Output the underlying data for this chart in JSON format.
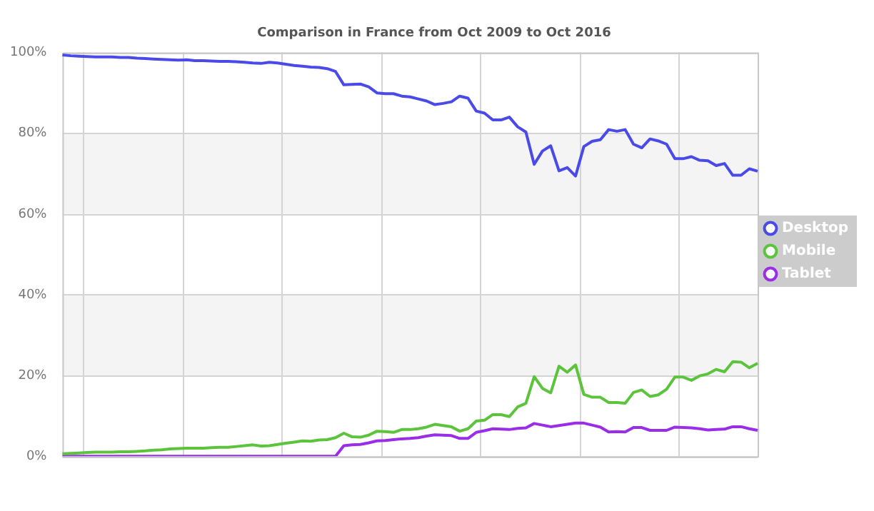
{
  "chart_data": {
    "type": "line",
    "subtitle": "Comparison in France from Oct 2009 to Oct 2016",
    "categories": [
      null,
      null,
      null,
      null,
      null,
      null,
      null,
      null,
      null,
      null,
      null,
      null,
      null,
      null,
      null,
      null,
      null,
      null,
      null,
      null,
      null,
      null,
      null,
      null,
      null,
      null,
      null,
      null,
      null,
      null,
      null,
      null,
      null,
      null,
      null,
      null,
      null,
      null,
      null,
      null,
      null,
      null,
      null,
      null,
      null,
      null,
      null,
      null,
      null,
      null,
      null,
      null,
      null,
      null,
      null,
      null,
      null,
      null,
      null,
      null,
      null,
      null,
      null,
      null,
      null,
      null,
      null,
      null,
      null,
      null,
      null,
      null,
      null,
      null,
      null,
      null,
      null,
      null,
      null,
      null,
      null,
      null,
      null,
      null,
      null
    ],
    "series": [
      {
        "name": "Desktop",
        "color": "#4a4ae8",
        "values": [
          99.4,
          99.2,
          99.1,
          99.0,
          98.9,
          98.9,
          98.9,
          98.8,
          98.8,
          98.6,
          98.5,
          98.4,
          98.3,
          98.2,
          98.1,
          98.2,
          98.0,
          98.0,
          97.9,
          97.8,
          97.8,
          97.7,
          97.6,
          97.4,
          97.3,
          97.6,
          97.4,
          97.1,
          96.8,
          96.6,
          96.4,
          96.3,
          96.0,
          95.3,
          92.0,
          92.1,
          92.2,
          91.5,
          90.0,
          89.8,
          89.8,
          89.2,
          89.0,
          88.5,
          88.0,
          87.1,
          87.4,
          87.8,
          89.2,
          88.7,
          85.5,
          85.0,
          83.3,
          83.3,
          84.0,
          81.6,
          80.3,
          72.3,
          75.6,
          76.9,
          70.7,
          71.5,
          69.4,
          76.7,
          78.0,
          78.4,
          80.9,
          80.5,
          80.9,
          77.3,
          76.4,
          78.6,
          78.1,
          77.3,
          73.7,
          73.7,
          74.2,
          73.3,
          73.2,
          72.0,
          72.5,
          69.6,
          69.6,
          71.2,
          70.6
        ]
      },
      {
        "name": "Mobile",
        "color": "#5cc43c",
        "values": [
          0.6,
          0.7,
          0.8,
          0.9,
          1.0,
          1.0,
          1.0,
          1.1,
          1.1,
          1.2,
          1.3,
          1.5,
          1.6,
          1.8,
          1.9,
          2.0,
          2.0,
          2.0,
          2.1,
          2.2,
          2.2,
          2.4,
          2.6,
          2.8,
          2.5,
          2.6,
          2.9,
          3.2,
          3.5,
          3.8,
          3.7,
          4.0,
          4.1,
          4.6,
          5.7,
          4.8,
          4.7,
          5.2,
          6.2,
          6.1,
          5.9,
          6.6,
          6.6,
          6.8,
          7.2,
          7.9,
          7.6,
          7.3,
          6.2,
          6.8,
          8.7,
          8.9,
          10.3,
          10.3,
          9.8,
          12.2,
          13.1,
          19.7,
          16.8,
          15.7,
          22.3,
          20.8,
          22.6,
          15.3,
          14.6,
          14.6,
          13.3,
          13.3,
          13.1,
          15.8,
          16.4,
          14.8,
          15.2,
          16.6,
          19.6,
          19.6,
          18.8,
          19.9,
          20.4,
          21.5,
          20.9,
          23.4,
          23.3,
          21.9,
          23.0
        ]
      },
      {
        "name": "Tablet",
        "color": "#9a2de8",
        "values": [
          0,
          0,
          0,
          0,
          0,
          0,
          0,
          0,
          0,
          0,
          0,
          0,
          0,
          0,
          0,
          0,
          0,
          0,
          0,
          0,
          0,
          0,
          0,
          0,
          0,
          0,
          0,
          0,
          0,
          0,
          0,
          0,
          0,
          0,
          2.6,
          2.8,
          2.9,
          3.3,
          3.8,
          3.9,
          4.1,
          4.3,
          4.4,
          4.6,
          5.0,
          5.3,
          5.2,
          5.1,
          4.4,
          4.4,
          5.9,
          6.3,
          6.8,
          6.7,
          6.6,
          6.9,
          7.0,
          8.1,
          7.7,
          7.3,
          7.6,
          7.9,
          8.2,
          8.2,
          7.7,
          7.2,
          6.0,
          6.1,
          6.0,
          7.1,
          7.1,
          6.4,
          6.4,
          6.4,
          7.2,
          7.1,
          7.0,
          6.8,
          6.5,
          6.6,
          6.7,
          7.3,
          7.3,
          6.8,
          6.4
        ]
      }
    ],
    "ylim": [
      0,
      100
    ],
    "yticks": [
      {
        "value": 0,
        "label": "0%"
      },
      {
        "value": 20,
        "label": "20%"
      },
      {
        "value": 40,
        "label": "40%"
      },
      {
        "value": 60,
        "label": "60%"
      },
      {
        "value": 80,
        "label": "80%"
      },
      {
        "value": 100,
        "label": "100%"
      }
    ],
    "grid": true,
    "legend": "right",
    "marker": "none",
    "line_style": "solid"
  }
}
